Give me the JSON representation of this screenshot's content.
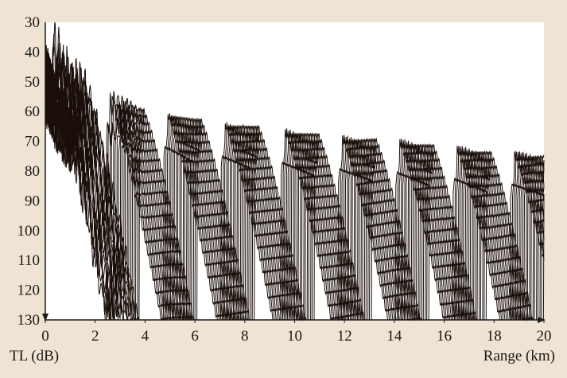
{
  "chart_data": {
    "type": "line",
    "title": "",
    "xlabel": "Range (km)",
    "ylabel": "TL (dB)",
    "xlim": [
      0,
      20
    ],
    "ylim": [
      30,
      130
    ],
    "y_inverted": true,
    "x_ticks": [
      0,
      2,
      4,
      6,
      8,
      10,
      12,
      14,
      16,
      18,
      20
    ],
    "y_ticks": [
      30,
      40,
      50,
      60,
      70,
      80,
      90,
      100,
      110,
      120,
      130
    ],
    "grid": false,
    "legend": "none",
    "colors": {
      "background": "#efe3d3",
      "plot_area": "#ffffff",
      "trace": "#1a0f0a"
    },
    "series_count": 20,
    "convergence_zone_peaks_km": [
      0.3,
      2.6,
      4.9,
      7.2,
      9.6,
      11.9,
      14.2,
      16.5,
      18.8
    ],
    "envelope_x": [
      0,
      0.5,
      1,
      2,
      3,
      4,
      5,
      6,
      7,
      8,
      9,
      10,
      12,
      14,
      16,
      18,
      20
    ],
    "envelope_min_tl": [
      30,
      42,
      50,
      55,
      57,
      60,
      61,
      63,
      64,
      65,
      66,
      67,
      69,
      70,
      72,
      74,
      75
    ]
  }
}
